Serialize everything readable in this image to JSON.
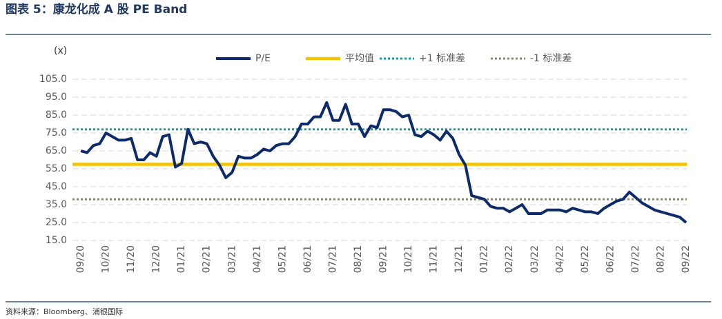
{
  "chart_data": {
    "type": "line",
    "title": "图表 5：康龙化成 A 股 PE Band",
    "source": "资料来源：Bloomberg、浦银国际",
    "y_label": "(x)",
    "categories": [
      "09/20",
      null,
      null,
      null,
      "10/20",
      null,
      null,
      null,
      "11/20",
      null,
      null,
      null,
      "12/20",
      null,
      null,
      null,
      "01/21",
      null,
      null,
      null,
      "02/21",
      null,
      null,
      null,
      "03/21",
      null,
      null,
      null,
      "04/21",
      null,
      null,
      null,
      "05/21",
      null,
      null,
      null,
      "06/21",
      null,
      null,
      null,
      "07/21",
      null,
      null,
      null,
      "08/21",
      null,
      null,
      null,
      "09/21",
      null,
      null,
      null,
      "10/21",
      null,
      null,
      null,
      "11/21",
      null,
      null,
      null,
      "12/21",
      null,
      null,
      null,
      "01/22",
      null,
      null,
      null,
      "02/22",
      null,
      null,
      null,
      "03/22",
      null,
      null,
      null,
      "04/22",
      null,
      null,
      null,
      "05/22",
      null,
      null,
      null,
      "06/22",
      null,
      null,
      null,
      "07/22",
      null,
      null,
      null,
      "08/22",
      null,
      null,
      null,
      "09/22"
    ],
    "series": [
      {
        "name": "P/E",
        "color": "#0d2a6b",
        "values": [
          65,
          64,
          68,
          69,
          75,
          73,
          71,
          71,
          72,
          60,
          60,
          64,
          62,
          73,
          74,
          56,
          58,
          77,
          69,
          70,
          69,
          62,
          57,
          50,
          53,
          62,
          61,
          61,
          63,
          66,
          65,
          68,
          69,
          69,
          73,
          80,
          80,
          84,
          84,
          92,
          82,
          82,
          91,
          80,
          80,
          73,
          79,
          78,
          88,
          88,
          87,
          84,
          85,
          74,
          73,
          76,
          74,
          71,
          76,
          72,
          63,
          57,
          40,
          39,
          38,
          34,
          33,
          33,
          31,
          33,
          35,
          30,
          30,
          30,
          32,
          32,
          32,
          31,
          33,
          32,
          31,
          31,
          30,
          33,
          35,
          37,
          38,
          42,
          39,
          36,
          34,
          32,
          31,
          30,
          29,
          28,
          25
        ]
      }
    ],
    "reference_lines": [
      {
        "name": "平均值",
        "value": 57.5,
        "color": "#f5c400",
        "style": "solid"
      },
      {
        "name": "+1 标准差",
        "value": 77,
        "color": "#1a9a9a",
        "style": "dotted"
      },
      {
        "name": "-1 标准差",
        "value": 38,
        "color": "#8c8a6a",
        "style": "dotted"
      }
    ],
    "ylim": [
      15,
      105
    ],
    "yticks": [
      {
        "value": 15,
        "label": "15.0"
      },
      {
        "value": 25,
        "label": "25.0"
      },
      {
        "value": 35,
        "label": "35.0"
      },
      {
        "value": 45,
        "label": "45.0"
      },
      {
        "value": 55,
        "label": "55.0"
      },
      {
        "value": 65,
        "label": "65.0"
      },
      {
        "value": 75,
        "label": "75.0"
      },
      {
        "value": 85,
        "label": "85.0"
      },
      {
        "value": 95,
        "label": "95.0"
      },
      {
        "value": 105,
        "label": "105.0"
      }
    ],
    "grid": true
  }
}
